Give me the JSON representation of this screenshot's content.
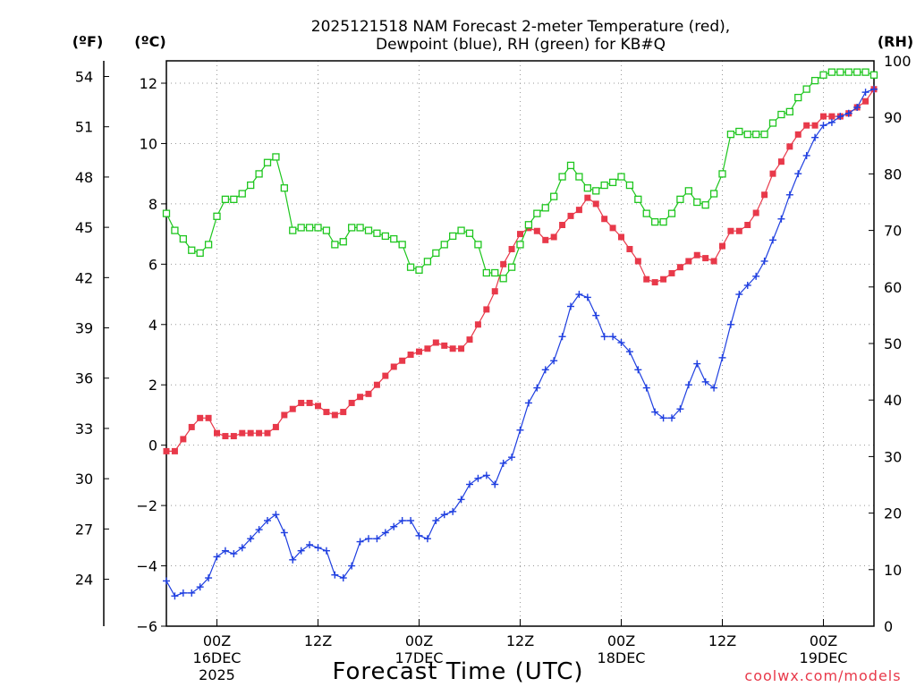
{
  "chart_data": {
    "type": "line",
    "title_line1": "2025121518 NAM Forecast 2-meter Temperature (red),",
    "title_line2": "Dewpoint (blue), RH (green) for KB#Q",
    "xlabel": "Forecast Time (UTC)",
    "credit": "coolwx.com/models",
    "left_outer_unit": "(ºF)",
    "left_inner_unit": "(ºC)",
    "right_unit": "(RH)",
    "y_celsius": {
      "min": -6,
      "max": 12.6,
      "ticks": [
        -6,
        -4,
        -2,
        0,
        2,
        4,
        6,
        8,
        10,
        12
      ],
      "labels": [
        "−6",
        "−4",
        "−2",
        "0",
        "2",
        "4",
        "6",
        "8",
        "10",
        "12"
      ]
    },
    "y_fahrenheit": {
      "ticks": [
        24,
        27,
        30,
        33,
        36,
        39,
        42,
        45,
        48,
        51,
        54
      ],
      "labels": [
        "24",
        "27",
        "30",
        "33",
        "36",
        "39",
        "42",
        "45",
        "48",
        "51",
        "54"
      ]
    },
    "y_rh": {
      "min": 0,
      "max": 100,
      "ticks": [
        0,
        10,
        20,
        30,
        40,
        50,
        60,
        70,
        80,
        90,
        100
      ],
      "labels": [
        "0",
        "10",
        "20",
        "30",
        "40",
        "50",
        "60",
        "70",
        "80",
        "90",
        "100"
      ]
    },
    "x_range": [
      0,
      84
    ],
    "x_ticks": [
      {
        "hour": 6,
        "lines": [
          "00Z",
          "16DEC",
          "2025"
        ]
      },
      {
        "hour": 18,
        "lines": [
          "12Z"
        ]
      },
      {
        "hour": 30,
        "lines": [
          "00Z",
          "17DEC"
        ]
      },
      {
        "hour": 42,
        "lines": [
          "12Z"
        ]
      },
      {
        "hour": 54,
        "lines": [
          "00Z",
          "18DEC"
        ]
      },
      {
        "hour": 66,
        "lines": [
          "12Z"
        ]
      },
      {
        "hour": 78,
        "lines": [
          "00Z",
          "19DEC"
        ]
      }
    ],
    "hours": [
      0,
      1,
      2,
      3,
      4,
      5,
      6,
      7,
      8,
      9,
      10,
      11,
      12,
      13,
      14,
      15,
      16,
      17,
      18,
      19,
      20,
      21,
      22,
      23,
      24,
      25,
      26,
      27,
      28,
      29,
      30,
      31,
      32,
      33,
      34,
      35,
      36,
      37,
      38,
      39,
      40,
      41,
      42,
      43,
      44,
      45,
      46,
      47,
      48,
      49,
      50,
      51,
      52,
      53,
      54,
      55,
      56,
      57,
      58,
      59,
      60,
      61,
      62,
      63,
      64,
      65,
      66,
      67,
      68,
      69,
      70,
      71,
      72,
      73,
      74,
      75,
      76,
      77,
      78,
      79,
      80,
      81,
      82,
      83,
      84
    ],
    "series": [
      {
        "name": "2-meter Temperature",
        "unit": "°C",
        "color": "#e8394a",
        "marker": "filled-square",
        "values": [
          -0.2,
          -0.2,
          0.2,
          0.6,
          0.9,
          0.9,
          0.4,
          0.3,
          0.3,
          0.4,
          0.4,
          0.4,
          0.4,
          0.6,
          1.0,
          1.2,
          1.4,
          1.4,
          1.3,
          1.1,
          1.0,
          1.1,
          1.4,
          1.6,
          1.7,
          2.0,
          2.3,
          2.6,
          2.8,
          3.0,
          3.1,
          3.2,
          3.4,
          3.3,
          3.2,
          3.2,
          3.5,
          4.0,
          4.5,
          5.1,
          6.0,
          6.5,
          7.0,
          7.2,
          7.1,
          6.8,
          6.9,
          7.3,
          7.6,
          7.8,
          8.2,
          8.0,
          7.5,
          7.2,
          6.9,
          6.5,
          6.1,
          5.5,
          5.4,
          5.5,
          5.7,
          5.9,
          6.1,
          6.3,
          6.2,
          6.1,
          6.6,
          7.1,
          7.1,
          7.3,
          7.7,
          8.3,
          9.0,
          9.4,
          9.9,
          10.3,
          10.6,
          10.6,
          10.9,
          10.9,
          10.9,
          11.0,
          11.2,
          11.4,
          11.8
        ]
      },
      {
        "name": "Dewpoint",
        "unit": "°C",
        "color": "#1f3fe0",
        "marker": "plus",
        "values": [
          -4.5,
          -5.0,
          -4.9,
          -4.9,
          -4.7,
          -4.4,
          -3.7,
          -3.5,
          -3.6,
          -3.4,
          -3.1,
          -2.8,
          -2.5,
          -2.3,
          -2.9,
          -3.8,
          -3.5,
          -3.3,
          -3.4,
          -3.5,
          -4.3,
          -4.4,
          -4.0,
          -3.2,
          -3.1,
          -3.1,
          -2.9,
          -2.7,
          -2.5,
          -2.5,
          -3.0,
          -3.1,
          -2.5,
          -2.3,
          -2.2,
          -1.8,
          -1.3,
          -1.1,
          -1.0,
          -1.3,
          -0.6,
          -0.4,
          0.5,
          1.4,
          1.9,
          2.5,
          2.8,
          3.6,
          4.6,
          5.0,
          4.9,
          4.3,
          3.6,
          3.6,
          3.4,
          3.1,
          2.5,
          1.9,
          1.1,
          0.9,
          0.9,
          1.2,
          2.0,
          2.7,
          2.1,
          1.9,
          2.9,
          4.0,
          5.0,
          5.3,
          5.6,
          6.1,
          6.8,
          7.5,
          8.3,
          9.0,
          9.6,
          10.2,
          10.6,
          10.7,
          10.9,
          11.0,
          11.2,
          11.7,
          11.8
        ]
      },
      {
        "name": "Relative Humidity",
        "unit": "%",
        "color": "#1ec61e",
        "marker": "open-square",
        "values": [
          73.0,
          70.0,
          68.5,
          66.5,
          66.0,
          67.5,
          72.5,
          75.5,
          75.5,
          76.5,
          78.0,
          80.0,
          82.0,
          83.0,
          77.5,
          70.0,
          70.5,
          70.5,
          70.5,
          70.0,
          67.5,
          68.0,
          70.5,
          70.5,
          70.0,
          69.5,
          69.0,
          68.5,
          67.5,
          63.5,
          63.0,
          64.5,
          66.0,
          67.5,
          69.0,
          70.0,
          69.5,
          67.5,
          62.5,
          62.5,
          61.5,
          63.5,
          67.5,
          71.0,
          73.0,
          74.0,
          76.0,
          79.5,
          81.5,
          79.5,
          77.5,
          77.0,
          78.0,
          78.5,
          79.5,
          78.0,
          75.5,
          73.0,
          71.5,
          71.5,
          73.0,
          75.5,
          77.0,
          75.0,
          74.5,
          76.5,
          80.0,
          87.0,
          87.5,
          87.0,
          87.0,
          87.0,
          89.0,
          90.5,
          91.0,
          93.5,
          95.0,
          96.5,
          97.5,
          98.0,
          98.0,
          98.0,
          98.0,
          98.0,
          97.5
        ]
      }
    ]
  }
}
